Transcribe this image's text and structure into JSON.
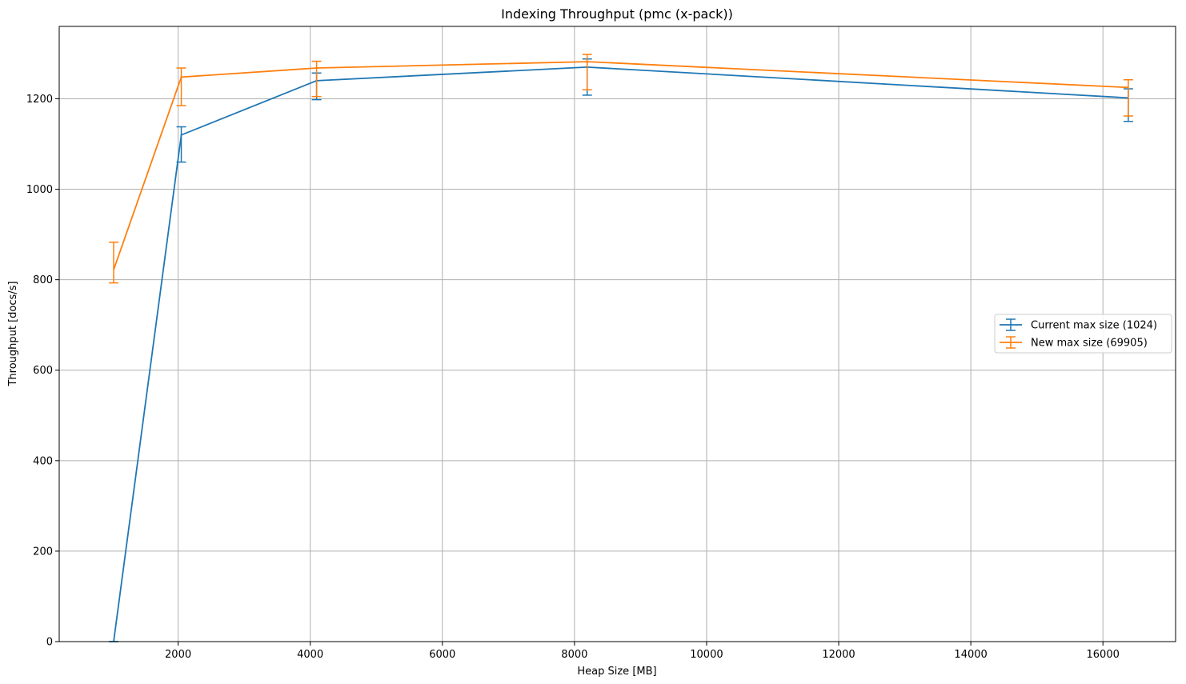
{
  "chart_data": {
    "type": "line",
    "title": "Indexing Throughput (pmc (x-pack))",
    "xlabel": "Heap Size [MB]",
    "ylabel": "Throughput [docs/s]",
    "xlim": [
      200,
      17100
    ],
    "ylim": [
      0,
      1360
    ],
    "xticks": [
      2000,
      4000,
      6000,
      8000,
      10000,
      12000,
      14000,
      16000
    ],
    "yticks": [
      0,
      200,
      400,
      600,
      800,
      1000,
      1200
    ],
    "grid": true,
    "legend_position": "center-right",
    "x": [
      1024,
      2048,
      4096,
      8192,
      16384
    ],
    "series": [
      {
        "name": "Current max size (1024)",
        "color": "#1f77b4",
        "values": [
          0,
          1120,
          1240,
          1270,
          1202
        ],
        "err_low": [
          0,
          1060,
          1198,
          1208,
          1150
        ],
        "err_high": [
          0,
          1138,
          1257,
          1288,
          1222
        ]
      },
      {
        "name": "New max size (69905)",
        "color": "#ff7f0e",
        "values": [
          822,
          1248,
          1268,
          1282,
          1225
        ],
        "err_low": [
          793,
          1185,
          1205,
          1220,
          1162
        ],
        "err_high": [
          883,
          1268,
          1283,
          1298,
          1242
        ]
      }
    ]
  }
}
